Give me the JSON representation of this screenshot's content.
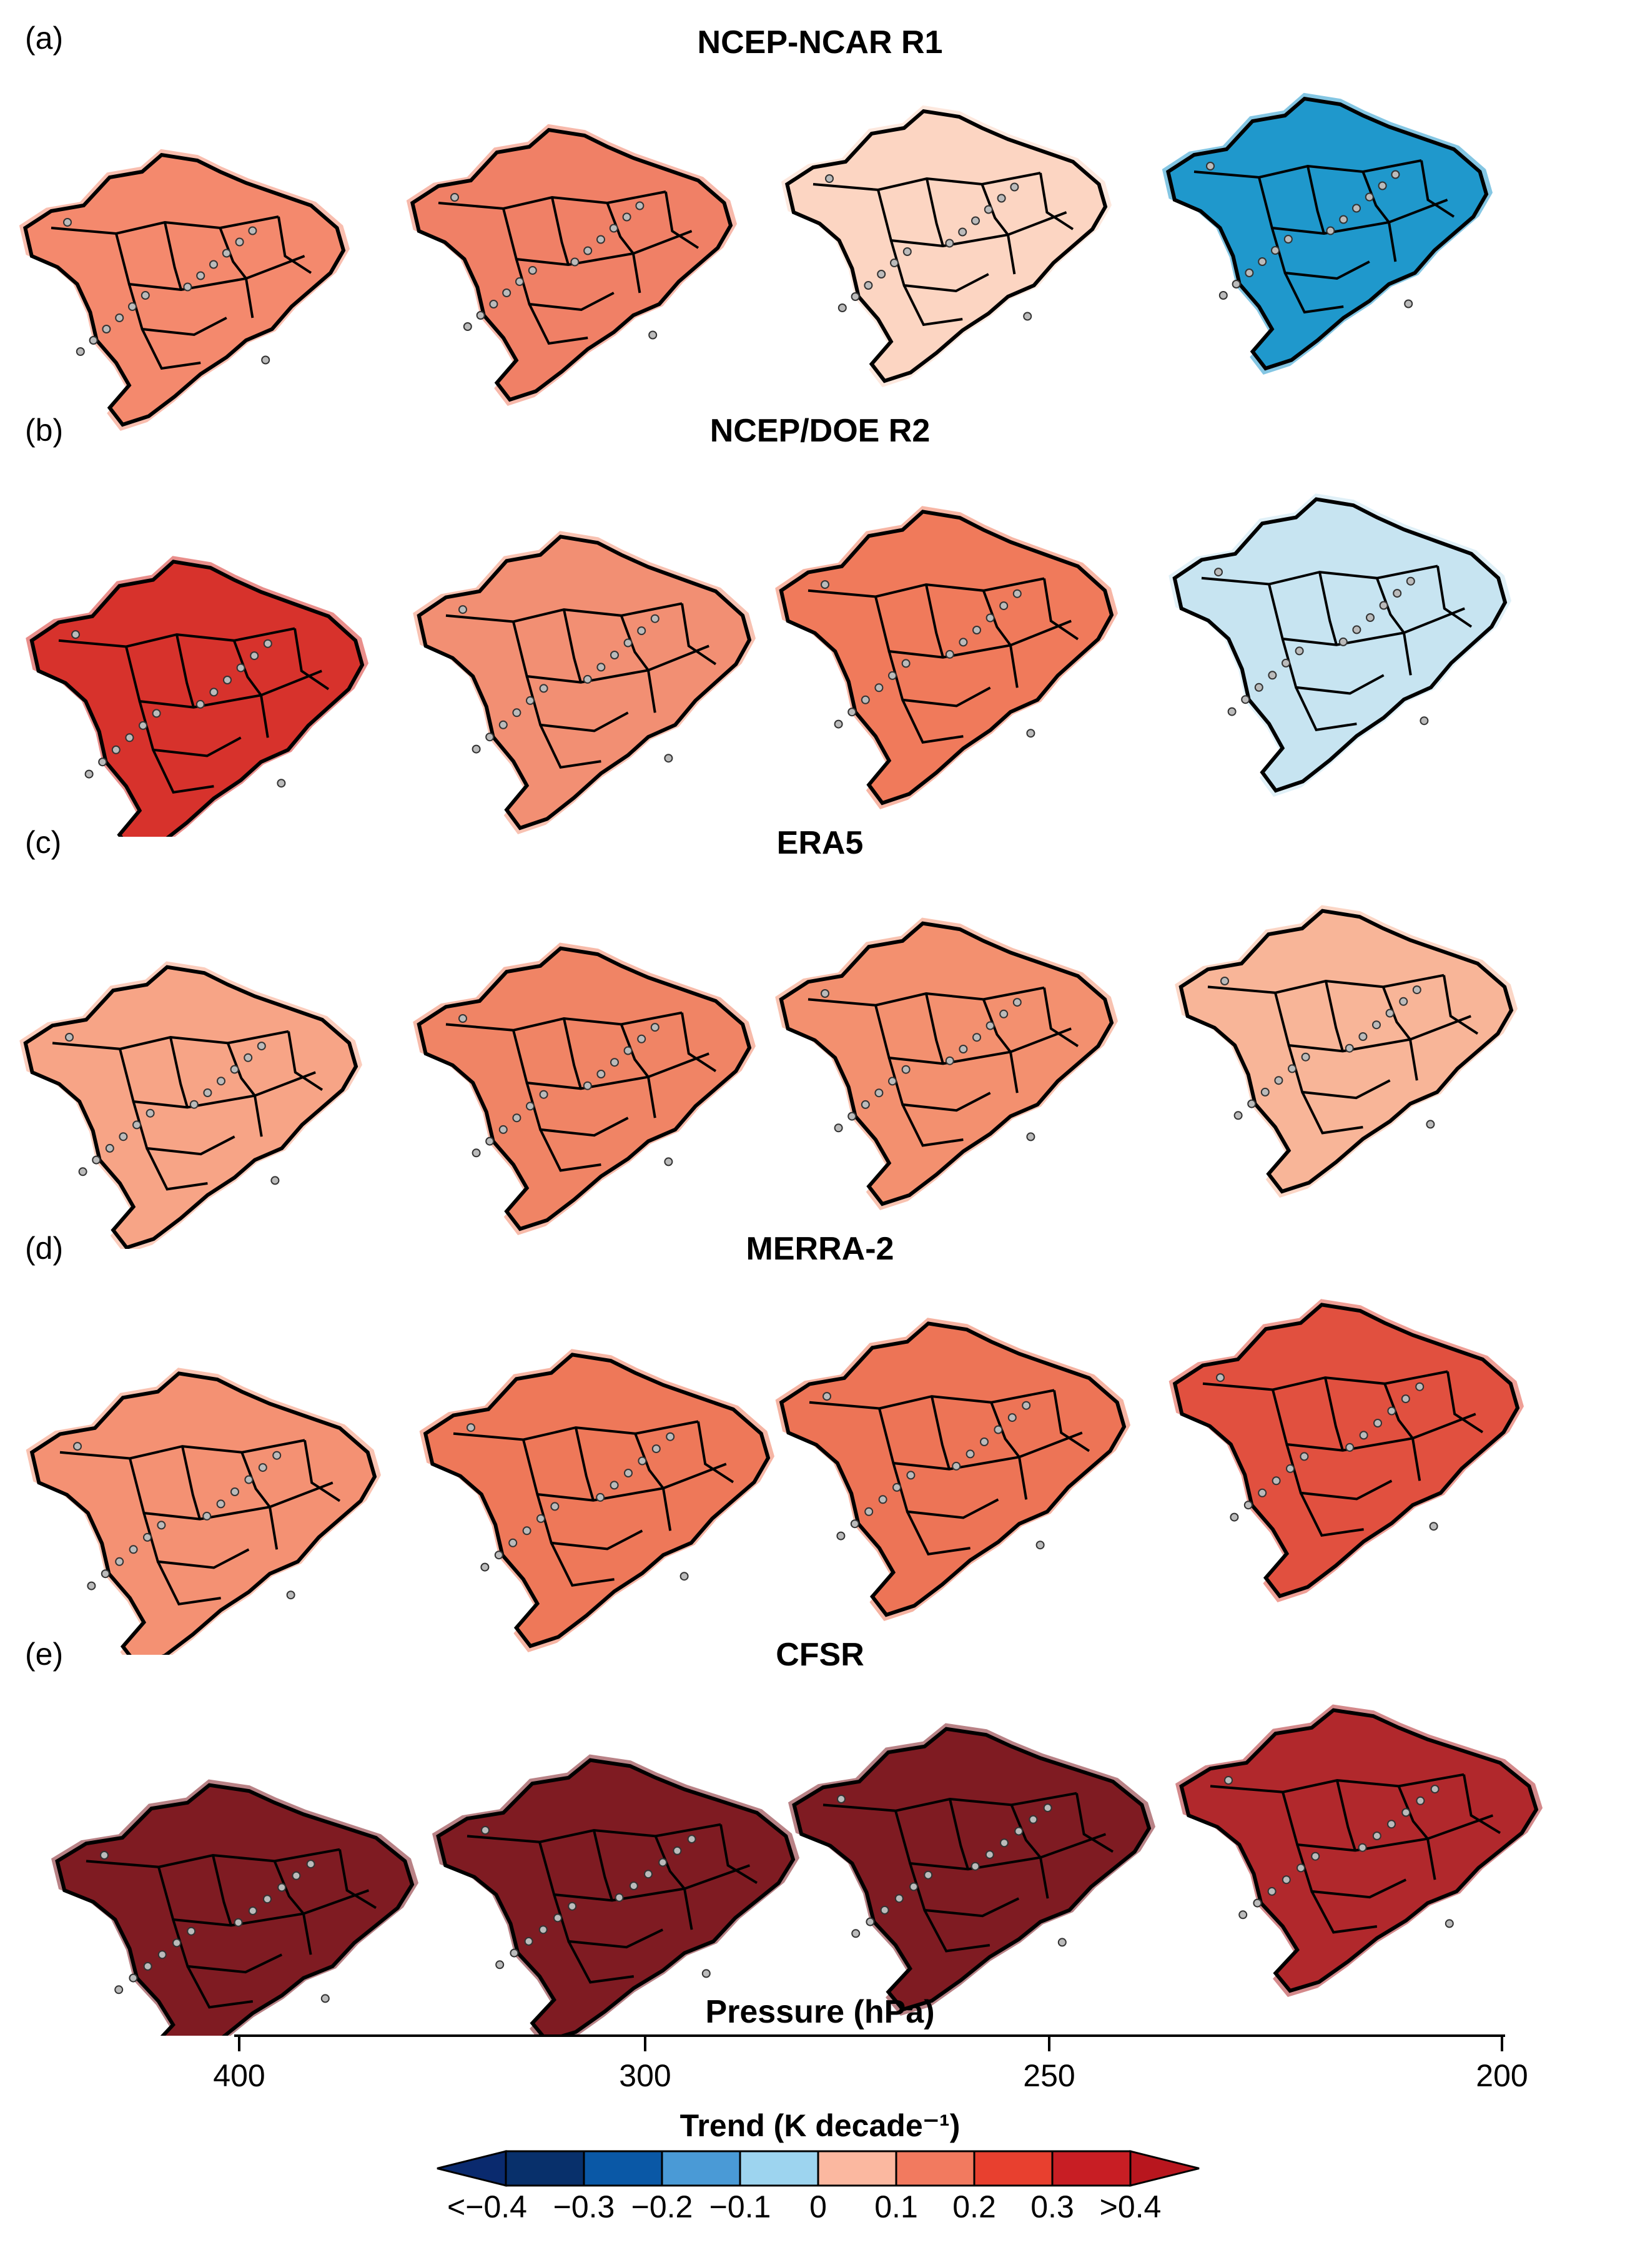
{
  "panels": [
    {
      "letter": "(a)",
      "title": "NCEP-NCAR R1"
    },
    {
      "letter": "(b)",
      "title": "NCEP/DOE R2"
    },
    {
      "letter": "(c)",
      "title": "ERA5"
    },
    {
      "letter": "(d)",
      "title": "MERRA-2"
    },
    {
      "letter": "(e)",
      "title": "CFSR"
    }
  ],
  "pressure_axis": {
    "title": "Pressure (hPa)",
    "ticks": [
      "400",
      "300",
      "250",
      "200"
    ]
  },
  "colorbar": {
    "title": "Trend (K decade⁻¹)",
    "labels": [
      "<−0.4",
      "−0.3",
      "−0.2",
      "−0.1",
      "0",
      "0.1",
      "0.2",
      "0.3",
      ">0.4"
    ],
    "colors": [
      "#08306b",
      "#0a58a6",
      "#4a9ad6",
      "#9dd4ef",
      "#fbb8a0",
      "#f27a5f",
      "#e8402f",
      "#c81e24"
    ],
    "end_low": "#0a2a6e",
    "end_high": "#b8161e"
  },
  "map_colors": {
    "a": [
      "#f4896d",
      "#f08066",
      "#fcd5c2",
      "#1f98cc"
    ],
    "b": [
      "#d7322c",
      "#f28f73",
      "#f07a5b",
      "#c7e4f1"
    ],
    "c": [
      "#f7a486",
      "#f08465",
      "#f3906f",
      "#f8b598"
    ],
    "d": [
      "#f49173",
      "#ee7859",
      "#ed7456",
      "#e1503f"
    ],
    "e": [
      "#7f1b22",
      "#7f1b22",
      "#7f1b22",
      "#b1282c"
    ]
  }
}
